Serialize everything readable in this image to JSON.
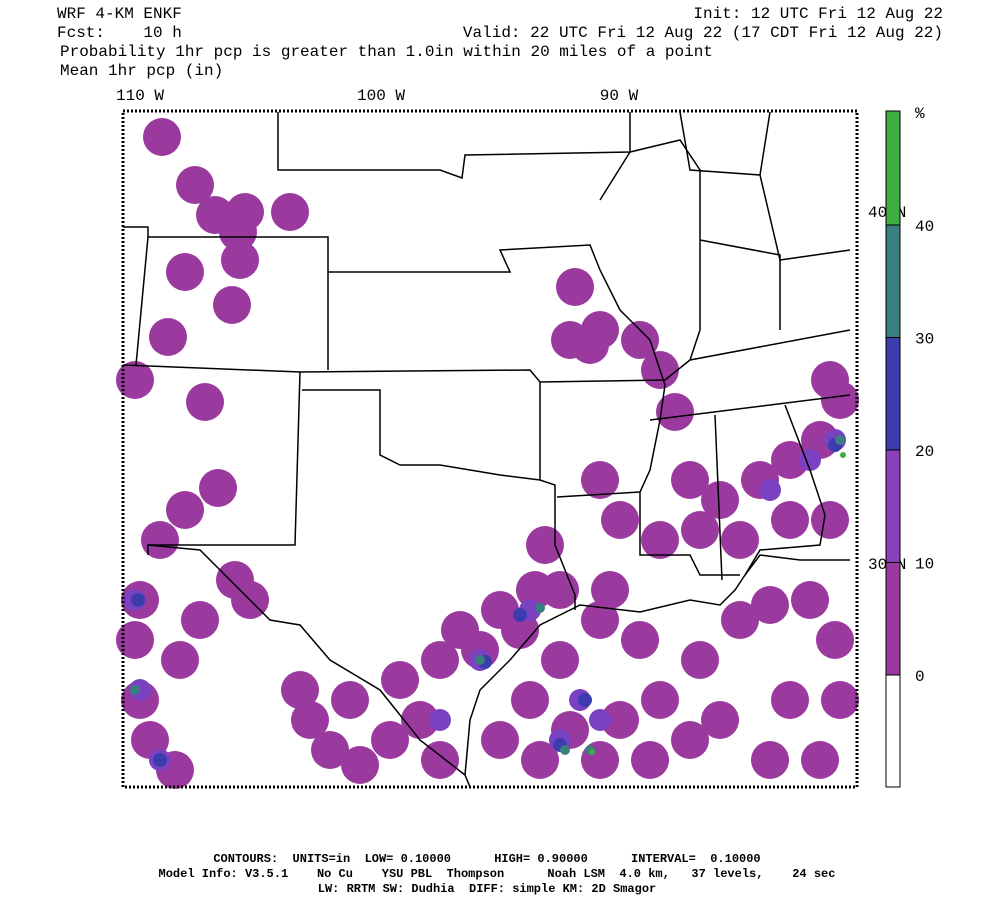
{
  "header": {
    "model": "WRF 4-KM ENKF",
    "init": "Init: 12 UTC Fri 12 Aug 22",
    "fcst": "Fcst:    10 h",
    "valid": "Valid: 22 UTC Fri 12 Aug 22 (17 CDT Fri 12 Aug 22)",
    "line1": "Probability 1hr pcp is greater than 1.0in within 20 miles of a point",
    "line2": "Mean 1hr pcp (in)"
  },
  "map": {
    "lon_labels": [
      "110 W",
      "100 W",
      "90 W"
    ],
    "lat_labels": [
      "40 N",
      "30 N"
    ]
  },
  "colorbar": {
    "unit": "%",
    "levels": [
      0,
      10,
      20,
      30,
      40
    ],
    "colors": [
      "#ffffff",
      "#9b3a9e",
      "#8a40b8",
      "#3c3cae",
      "#3a7f80",
      "#3fad3f"
    ]
  },
  "footer": {
    "line1": "CONTOURS:  UNITS=in  LOW= 0.10000      HIGH= 0.90000      INTERVAL=  0.10000",
    "line2": "Model Info: V3.5.1    No Cu    YSU PBL  Thompson      Noah LSM  4.0 km,   37 levels,    24 sec",
    "line3": "LW: RRTM SW: Dudhia  DIFF: simple KM: 2D Smagor"
  }
}
